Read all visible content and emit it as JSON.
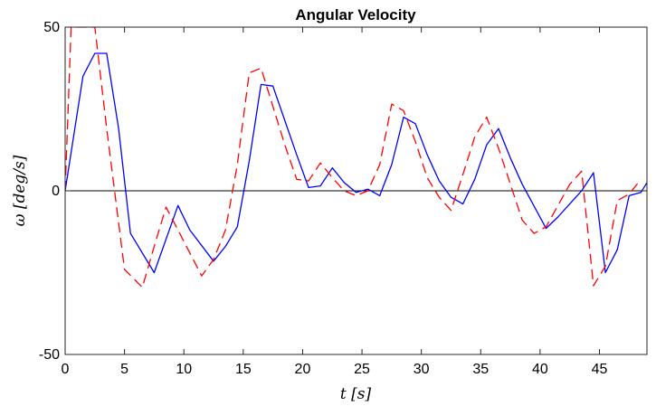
{
  "chart_data": {
    "type": "line",
    "title": "Angular Velocity",
    "xlabel": "t [s]",
    "ylabel": "ω [deg/s]",
    "xlim": [
      0,
      49
    ],
    "ylim": [
      -50,
      50
    ],
    "xticks": [
      0,
      5,
      10,
      15,
      20,
      25,
      30,
      35,
      40,
      45
    ],
    "yticks": [
      -50,
      0,
      50
    ],
    "grid": false,
    "zero_line": true,
    "series": [
      {
        "color": "#0000ff",
        "style": "solid",
        "points": [
          [
            0,
            0
          ],
          [
            1.5,
            35
          ],
          [
            2.5,
            42
          ],
          [
            3.5,
            42
          ],
          [
            4.5,
            19
          ],
          [
            5.5,
            -13
          ],
          [
            7.5,
            -25
          ],
          [
            9.5,
            -4.5
          ],
          [
            10.5,
            -12
          ],
          [
            12.5,
            -21.5
          ],
          [
            13.5,
            -17
          ],
          [
            14.5,
            -11
          ],
          [
            15.5,
            9
          ],
          [
            16.5,
            32.5
          ],
          [
            17.5,
            32
          ],
          [
            19.5,
            11
          ],
          [
            20.5,
            1
          ],
          [
            21.5,
            1.5
          ],
          [
            22.5,
            7
          ],
          [
            23.5,
            2.5
          ],
          [
            24.5,
            -0.5
          ],
          [
            25.5,
            0.5
          ],
          [
            26.5,
            -1.5
          ],
          [
            27.5,
            8
          ],
          [
            28.5,
            22.5
          ],
          [
            29.5,
            20.5
          ],
          [
            30.5,
            11
          ],
          [
            31.5,
            3
          ],
          [
            32.5,
            -2
          ],
          [
            33.5,
            -4
          ],
          [
            34.5,
            3.5
          ],
          [
            35.5,
            14
          ],
          [
            36.5,
            19
          ],
          [
            37.5,
            10
          ],
          [
            38.5,
            2
          ],
          [
            40.5,
            -11.5
          ],
          [
            41.5,
            -8
          ],
          [
            43.5,
            0
          ],
          [
            44.5,
            5.5
          ],
          [
            45.5,
            -25
          ],
          [
            46.5,
            -18
          ],
          [
            47.5,
            -1.5
          ],
          [
            48.5,
            -0.5
          ],
          [
            49,
            2.5
          ]
        ]
      },
      {
        "color": "#ff0000",
        "style": "dashed",
        "points": [
          [
            0,
            0
          ],
          [
            0.5,
            50
          ],
          [
            2.5,
            50
          ],
          [
            3.5,
            19
          ],
          [
            5,
            -24
          ],
          [
            6.5,
            -29.5
          ],
          [
            7.5,
            -17
          ],
          [
            8.5,
            -5
          ],
          [
            9.5,
            -12
          ],
          [
            11.5,
            -26
          ],
          [
            12.5,
            -21
          ],
          [
            13.5,
            -12
          ],
          [
            14.5,
            8
          ],
          [
            15.5,
            36
          ],
          [
            16.5,
            37.5
          ],
          [
            18.5,
            14
          ],
          [
            19.5,
            3.5
          ],
          [
            20.5,
            3
          ],
          [
            21.5,
            8.5
          ],
          [
            22.5,
            4
          ],
          [
            23.5,
            0
          ],
          [
            24.5,
            -1.5
          ],
          [
            25.5,
            0
          ],
          [
            26.5,
            8
          ],
          [
            27.5,
            26.5
          ],
          [
            28.5,
            24.5
          ],
          [
            29.5,
            15
          ],
          [
            30.5,
            4
          ],
          [
            31.5,
            -2
          ],
          [
            32.5,
            -6
          ],
          [
            33.5,
            5
          ],
          [
            34.5,
            16.5
          ],
          [
            35.5,
            22.5
          ],
          [
            36.5,
            13
          ],
          [
            38.5,
            -9
          ],
          [
            39.5,
            -13
          ],
          [
            40.5,
            -11
          ],
          [
            42.5,
            2
          ],
          [
            43.5,
            6
          ],
          [
            44.5,
            -29
          ],
          [
            45.5,
            -23
          ],
          [
            46.5,
            -3
          ],
          [
            47.5,
            -1
          ],
          [
            48.5,
            3.5
          ]
        ]
      }
    ]
  }
}
